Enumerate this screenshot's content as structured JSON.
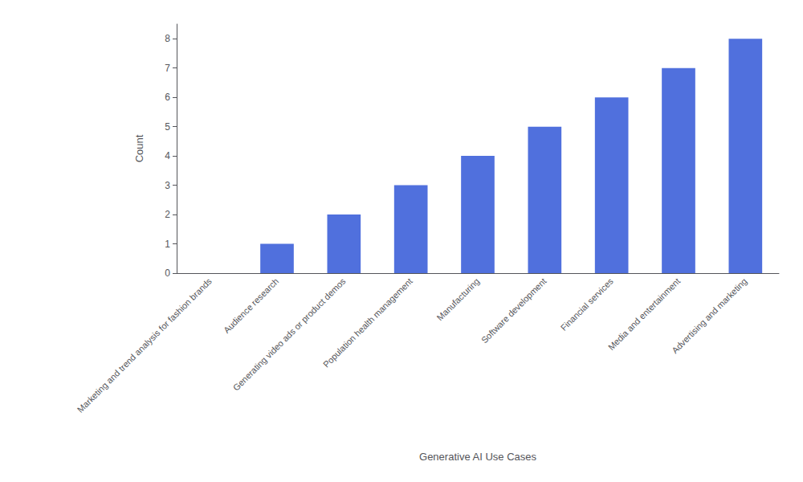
{
  "chart_data": {
    "type": "bar",
    "categories": [
      "Marketing and trend analysis for fashion brands",
      "Audience research",
      "Generating video ads or product demos",
      "Population health management",
      "Manufacturing",
      "Software development",
      "Financial services",
      "Media and entertainment",
      "Advertising and marketing"
    ],
    "values": [
      0,
      1,
      2,
      3,
      4,
      5,
      6,
      7,
      8
    ],
    "xlabel": "Generative AI Use Cases",
    "ylabel": "Count",
    "ylim": [
      0,
      8.5
    ],
    "yticks": [
      0,
      1,
      2,
      3,
      4,
      5,
      6,
      7,
      8
    ],
    "grid": false
  }
}
